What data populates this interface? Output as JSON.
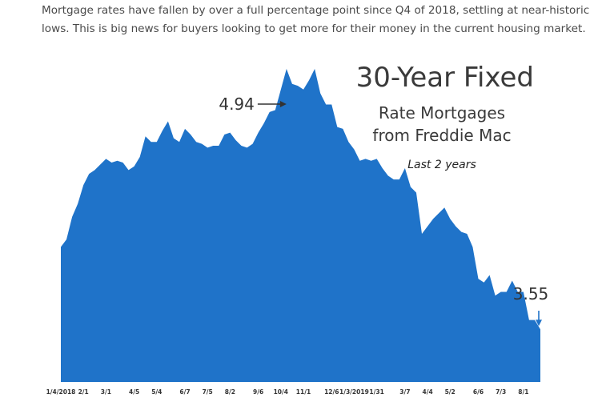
{
  "article": {
    "intro_text": "Mortgage rates have fallen by over a full percentage point since Q4 of 2018, settling at near-historic lows. This is big news for buyers looking to get more for their money in the current housing market."
  },
  "colors": {
    "area_fill": "#1f73c9",
    "text": "#333333"
  },
  "chart_data": {
    "type": "area",
    "title": "30-Year Fixed",
    "subtitle_line1": "Rate Mortgages",
    "subtitle_line2": "from Freddie Mac",
    "period_note": "Last 2 years",
    "xlabel": "",
    "ylabel": "",
    "ylim": [
      3.0,
      5.0
    ],
    "grid": false,
    "legend": "none",
    "series": [
      {
        "name": "",
        "values": [
          3.99,
          4.03,
          4.15,
          4.22,
          4.32,
          4.38,
          4.4,
          4.43,
          4.46,
          4.44,
          4.45,
          4.44,
          4.4,
          4.42,
          4.47,
          4.58,
          4.55,
          4.55,
          4.61,
          4.66,
          4.57,
          4.55,
          4.62,
          4.59,
          4.55,
          4.54,
          4.52,
          4.53,
          4.53,
          4.59,
          4.6,
          4.56,
          4.53,
          4.52,
          4.54,
          4.6,
          4.65,
          4.71,
          4.72,
          4.83,
          4.94,
          4.86,
          4.85,
          4.83,
          4.88,
          4.94,
          4.81,
          4.75,
          4.75,
          4.63,
          4.62,
          4.55,
          4.51,
          4.45,
          4.46,
          4.45,
          4.46,
          4.41,
          4.37,
          4.35,
          4.35,
          4.41,
          4.31,
          4.28,
          4.06,
          4.1,
          4.14,
          4.17,
          4.2,
          4.14,
          4.1,
          4.07,
          4.06,
          3.99,
          3.82,
          3.8,
          3.84,
          3.73,
          3.75,
          3.75,
          3.81,
          3.75,
          3.75,
          3.6,
          3.6,
          3.55
        ]
      }
    ],
    "annotations": {
      "peak_label": "4.94",
      "end_label": "3.55"
    },
    "tick_labels": [
      "1/4/2018",
      "2/1",
      "3/1",
      "4/5",
      "5/4",
      "6/7",
      "7/5",
      "8/2",
      "9/6",
      "10/4",
      "11/1",
      "12/6",
      "1/3/2019",
      "1/31",
      "3/7",
      "4/4",
      "5/2",
      "6/6",
      "7/3",
      "8/1"
    ],
    "tick_positions": [
      0,
      4,
      8,
      13,
      17,
      22,
      26,
      30,
      35,
      39,
      43,
      48,
      52,
      56,
      61,
      65,
      69,
      74,
      78,
      82
    ]
  }
}
